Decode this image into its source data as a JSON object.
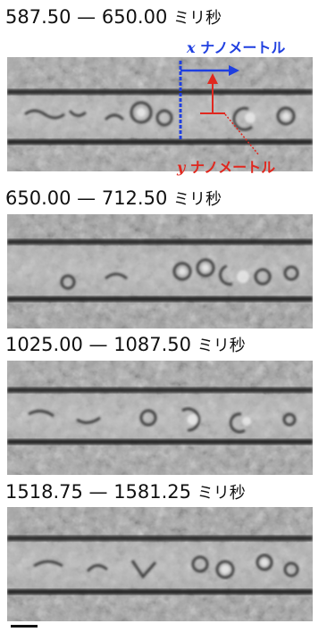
{
  "panels": [
    {
      "time_range": "587.50 — 650.00",
      "unit": "ミリ秒"
    },
    {
      "time_range": "650.00 — 712.50",
      "unit": "ミリ秒"
    },
    {
      "time_range": "1025.00 — 1087.50",
      "unit": "ミリ秒"
    },
    {
      "time_range": "1518.75 — 1581.25",
      "unit": "ミリ秒"
    }
  ],
  "annotations": {
    "x_var": "x",
    "x_label": "ナノメートル",
    "y_var": "y",
    "y_label": "ナノメートル",
    "x_color": "#1f3fe0",
    "y_color": "#e0281f"
  }
}
